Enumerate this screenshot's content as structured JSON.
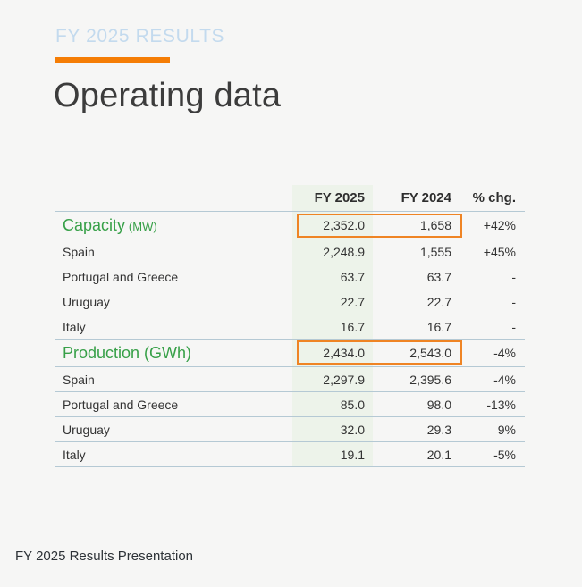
{
  "slide": {
    "eyebrow": "FY 2025 RESULTS",
    "title": "Operating data",
    "footer": "FY 2025 Results Presentation"
  },
  "colors": {
    "accent_orange": "#f57d05",
    "highlight_box_orange": "#ef8424",
    "section_green": "#37a048",
    "fy2025_column_bg": "#edf3ea",
    "eyebrow_blue": "#c3daee",
    "row_line": "#b5c9d4",
    "background": "#f6f6f5"
  },
  "table": {
    "headers": {
      "label": "",
      "fy2025": "FY 2025",
      "fy2024": "FY 2024",
      "chg": "% chg."
    },
    "rows": [
      {
        "label": "Capacity",
        "unit": "(MW)",
        "fy2025": "2,352.0",
        "fy2024": "1,658",
        "chg": "+42%"
      },
      {
        "label": "Spain",
        "fy2025": "2,248.9",
        "fy2024": "1,555",
        "chg": "+45%"
      },
      {
        "label": "Portugal and Greece",
        "fy2025": "63.7",
        "fy2024": "63.7",
        "chg": "-"
      },
      {
        "label": "Uruguay",
        "fy2025": "22.7",
        "fy2024": "22.7",
        "chg": "-"
      },
      {
        "label": "Italy",
        "fy2025": "16.7",
        "fy2024": "16.7",
        "chg": "-"
      },
      {
        "label": "Production (GWh)",
        "fy2025": "2,434.0",
        "fy2024": "2,543.0",
        "chg": "-4%"
      },
      {
        "label": "Spain",
        "fy2025": "2,297.9",
        "fy2024": "2,395.6",
        "chg": "-4%"
      },
      {
        "label": "Portugal and Greece",
        "fy2025": "85.0",
        "fy2024": "98.0",
        "chg": "-13%"
      },
      {
        "label": "Uruguay",
        "fy2025": "32.0",
        "fy2024": "29.3",
        "chg": "9%"
      },
      {
        "label": "Italy",
        "fy2025": "19.1",
        "fy2024": "20.1",
        "chg": "-5%"
      }
    ]
  }
}
